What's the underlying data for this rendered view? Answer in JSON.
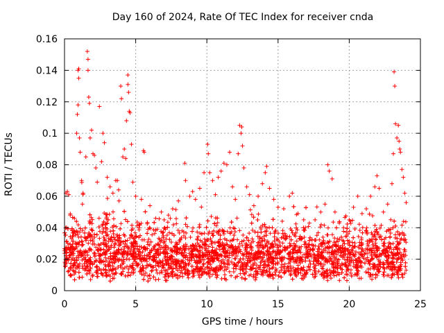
{
  "chart_data": {
    "type": "scatter",
    "title": "Day 160 of 2024, Rate Of TEC Index for receiver cnda",
    "xlabel": "GPS time / hours",
    "ylabel": "ROTI / TECUs",
    "xlim": [
      0,
      25
    ],
    "ylim": [
      0,
      0.16
    ],
    "xticks": [
      0,
      5,
      10,
      15,
      20,
      25
    ],
    "xtick_labels": [
      "0",
      "5",
      "10",
      "15",
      "20",
      "25"
    ],
    "yticks": [
      0,
      0.02,
      0.04,
      0.06,
      0.08,
      0.1,
      0.12,
      0.14,
      0.16
    ],
    "ytick_labels": [
      "0",
      "0.02",
      "0.04",
      "0.06",
      "0.08",
      "0.1",
      "0.12",
      "0.14",
      "0.16"
    ],
    "grid": true,
    "marker": "+",
    "color": "#ff0000",
    "series": [
      {
        "name": "ROTI",
        "points": [
          [
            0.05,
            0.017
          ],
          [
            0.1,
            0.062
          ],
          [
            0.2,
            0.063
          ],
          [
            0.3,
            0.061
          ],
          [
            0.4,
            0.048
          ],
          [
            0.5,
            0.033
          ],
          [
            0.7,
            0.046
          ],
          [
            0.85,
            0.1
          ],
          [
            0.9,
            0.112
          ],
          [
            0.95,
            0.118
          ],
          [
            0.95,
            0.14
          ],
          [
            1.0,
            0.141
          ],
          [
            1.0,
            0.135
          ],
          [
            1.05,
            0.097
          ],
          [
            1.1,
            0.088
          ],
          [
            1.2,
            0.07
          ],
          [
            1.3,
            0.062
          ],
          [
            1.5,
            0.085
          ],
          [
            1.6,
            0.152
          ],
          [
            1.65,
            0.147
          ],
          [
            1.65,
            0.14
          ],
          [
            1.7,
            0.123
          ],
          [
            1.75,
            0.119
          ],
          [
            1.8,
            0.097
          ],
          [
            1.9,
            0.102
          ],
          [
            2.0,
            0.087
          ],
          [
            2.1,
            0.086
          ],
          [
            2.2,
            0.078
          ],
          [
            2.3,
            0.069
          ],
          [
            2.45,
            0.117
          ],
          [
            2.6,
            0.082
          ],
          [
            2.7,
            0.1
          ],
          [
            2.8,
            0.094
          ],
          [
            3.0,
            0.072
          ],
          [
            3.2,
            0.066
          ],
          [
            3.4,
            0.062
          ],
          [
            3.6,
            0.07
          ],
          [
            3.8,
            0.064
          ],
          [
            3.95,
            0.13
          ],
          [
            4.0,
            0.122
          ],
          [
            4.1,
            0.085
          ],
          [
            4.2,
            0.09
          ],
          [
            4.3,
            0.084
          ],
          [
            4.35,
            0.108
          ],
          [
            4.45,
            0.131
          ],
          [
            4.45,
            0.137
          ],
          [
            4.5,
            0.126
          ],
          [
            4.55,
            0.114
          ],
          [
            4.6,
            0.113
          ],
          [
            4.7,
            0.093
          ],
          [
            4.8,
            0.069
          ],
          [
            5.0,
            0.06
          ],
          [
            5.4,
            0.058
          ],
          [
            5.55,
            0.089
          ],
          [
            5.6,
            0.088
          ],
          [
            6.0,
            0.054
          ],
          [
            6.4,
            0.046
          ],
          [
            6.8,
            0.05
          ],
          [
            7.0,
            0.045
          ],
          [
            7.3,
            0.048
          ],
          [
            7.6,
            0.052
          ],
          [
            8.0,
            0.057
          ],
          [
            8.45,
            0.081
          ],
          [
            8.5,
            0.07
          ],
          [
            8.8,
            0.06
          ],
          [
            9.0,
            0.063
          ],
          [
            9.2,
            0.058
          ],
          [
            9.5,
            0.065
          ],
          [
            9.8,
            0.075
          ],
          [
            10.05,
            0.093
          ],
          [
            10.1,
            0.087
          ],
          [
            10.2,
            0.075
          ],
          [
            10.4,
            0.07
          ],
          [
            10.6,
            0.061
          ],
          [
            10.8,
            0.072
          ],
          [
            11.0,
            0.076
          ],
          [
            11.2,
            0.081
          ],
          [
            11.4,
            0.08
          ],
          [
            11.6,
            0.088
          ],
          [
            11.8,
            0.066
          ],
          [
            12.0,
            0.058
          ],
          [
            12.2,
            0.087
          ],
          [
            12.3,
            0.105
          ],
          [
            12.4,
            0.1
          ],
          [
            12.45,
            0.104
          ],
          [
            12.5,
            0.092
          ],
          [
            12.6,
            0.078
          ],
          [
            12.8,
            0.066
          ],
          [
            13.0,
            0.061
          ],
          [
            13.3,
            0.054
          ],
          [
            13.6,
            0.06
          ],
          [
            13.9,
            0.068
          ],
          [
            14.1,
            0.075
          ],
          [
            14.2,
            0.079
          ],
          [
            14.4,
            0.065
          ],
          [
            14.7,
            0.058
          ],
          [
            15.0,
            0.053
          ],
          [
            15.4,
            0.052
          ],
          [
            15.8,
            0.06
          ],
          [
            16.0,
            0.062
          ],
          [
            16.4,
            0.049
          ],
          [
            16.8,
            0.045
          ],
          [
            17.2,
            0.043
          ],
          [
            17.6,
            0.045
          ],
          [
            18.0,
            0.05
          ],
          [
            18.3,
            0.055
          ],
          [
            18.5,
            0.08
          ],
          [
            18.6,
            0.076
          ],
          [
            18.8,
            0.071
          ],
          [
            19.0,
            0.05
          ],
          [
            19.3,
            0.043
          ],
          [
            19.6,
            0.04
          ],
          [
            20.0,
            0.045
          ],
          [
            20.3,
            0.053
          ],
          [
            20.6,
            0.06
          ],
          [
            20.9,
            0.049
          ],
          [
            21.2,
            0.052
          ],
          [
            21.5,
            0.06
          ],
          [
            21.8,
            0.066
          ],
          [
            21.95,
            0.073
          ],
          [
            22.1,
            0.065
          ],
          [
            22.4,
            0.05
          ],
          [
            22.7,
            0.055
          ],
          [
            23.0,
            0.068
          ],
          [
            23.1,
            0.087
          ],
          [
            23.15,
            0.139
          ],
          [
            23.2,
            0.13
          ],
          [
            23.25,
            0.106
          ],
          [
            23.35,
            0.097
          ],
          [
            23.45,
            0.105
          ],
          [
            23.5,
            0.095
          ],
          [
            23.55,
            0.09
          ],
          [
            23.6,
            0.088
          ],
          [
            23.7,
            0.077
          ],
          [
            23.8,
            0.072
          ],
          [
            23.9,
            0.062
          ],
          [
            24.0,
            0.056
          ]
        ],
        "bulk_note": "dense band of markers between 0.005 and ~0.045 across 0-24 h"
      }
    ]
  }
}
